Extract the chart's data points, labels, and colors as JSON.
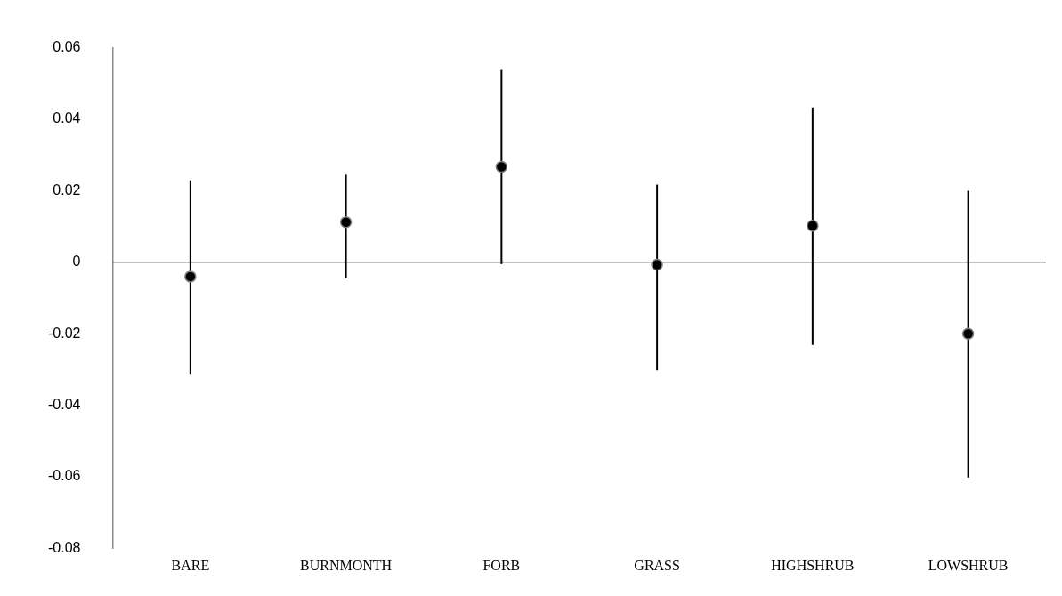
{
  "chart_data": {
    "type": "scatter",
    "categories": [
      "BARE",
      "BURNMONTH",
      "FORB",
      "GRASS",
      "HIGHSHRUB",
      "LOWSHRUB"
    ],
    "values": [
      -0.004,
      0.0112,
      0.0267,
      -0.0007,
      0.0102,
      -0.02
    ],
    "errors": [
      [
        -0.0312,
        0.0229
      ],
      [
        -0.0045,
        0.0245
      ],
      [
        -0.0005,
        0.0538
      ],
      [
        -0.0302,
        0.0217
      ],
      [
        -0.0231,
        0.0433
      ],
      [
        -0.0602,
        0.02
      ]
    ],
    "color": "#000000",
    "marker": "circle",
    "ylim": [
      -0.08,
      0.06
    ],
    "yticks": [
      -0.08,
      -0.06,
      -0.04,
      -0.02,
      0,
      0.02,
      0.04,
      0.06
    ],
    "legend": false,
    "ref_lines": [
      {
        "axis": "y",
        "value": 0,
        "color": "#8c8c8c"
      }
    ]
  }
}
